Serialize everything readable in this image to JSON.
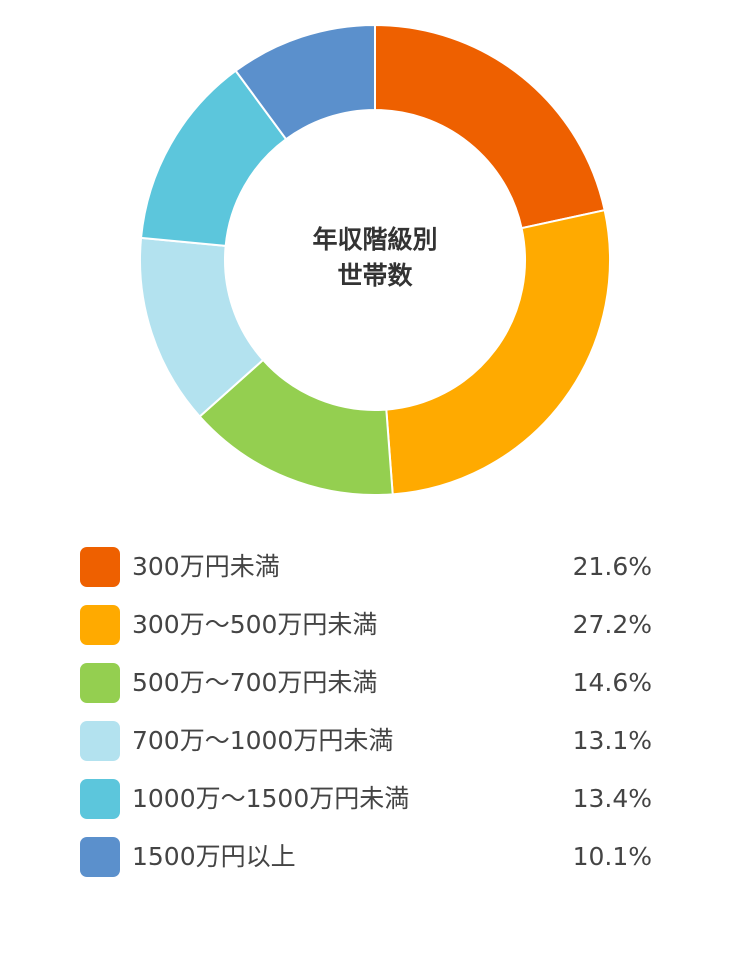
{
  "chart_data": {
    "type": "pie",
    "title": "年収階級別世帯数",
    "center_title_lines": [
      "年収階級別",
      "世帯数"
    ],
    "legend_position": "bottom",
    "categories": [
      "300万円未満",
      "300万～500万円未満",
      "500万～700万円未満",
      "700万～1000万円未満",
      "1000万～1500万円未満",
      "1500万円以上"
    ],
    "values": [
      21.6,
      27.2,
      14.6,
      13.1,
      13.4,
      10.1
    ],
    "value_labels": [
      "21.6%",
      "27.2%",
      "14.6%",
      "13.1%",
      "13.4%",
      "10.1%"
    ],
    "colors": [
      "#EE6000",
      "#FFAA00",
      "#94CF50",
      "#B3E2EF",
      "#5CC6DC",
      "#5B90CC"
    ]
  }
}
